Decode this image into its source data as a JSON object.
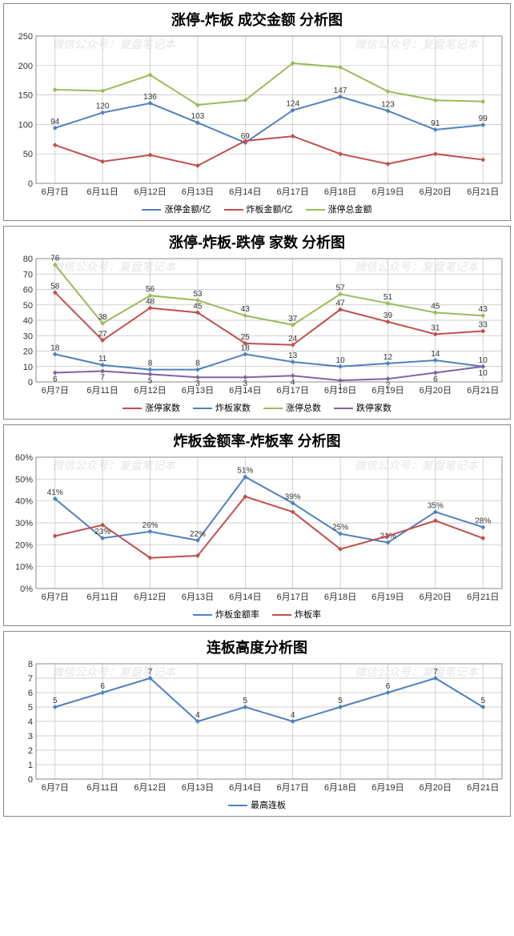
{
  "watermark_texts": [
    "微信公众号：复盘笔记本",
    "微信公众号：复盘笔记本"
  ],
  "watermark_color": "#e5e5e5",
  "x_categories": [
    "6月7日",
    "6月11日",
    "6月12日",
    "6月13日",
    "6月14日",
    "6月17日",
    "6月18日",
    "6月19日",
    "6月20日",
    "6月21日"
  ],
  "grid_color": "#bfbfbf",
  "axis_color": "#888888",
  "tick_font_size": 11,
  "title_font_size": 18,
  "chart1": {
    "title": "涨停-炸板 成交金额 分析图",
    "ylim": [
      0,
      250
    ],
    "ytick_step": 50,
    "series": [
      {
        "name": "涨停金额/亿",
        "color": "#4f81bd",
        "values": [
          94,
          120,
          136,
          103,
          69,
          124,
          147,
          123,
          91,
          99
        ],
        "label_all": true
      },
      {
        "name": "炸板金额/亿",
        "color": "#c0504d",
        "values": [
          65,
          37,
          48,
          30,
          72,
          80,
          50,
          33,
          50,
          40
        ],
        "label_all": false
      },
      {
        "name": "涨停总金额",
        "color": "#9bbb59",
        "values": [
          159,
          157,
          184,
          133,
          141,
          204,
          197,
          156,
          141,
          139
        ],
        "label_all": false
      }
    ]
  },
  "chart2": {
    "title": "涨停-炸板-跌停 家数 分析图",
    "ylim": [
      0,
      80
    ],
    "ytick_step": 10,
    "series": [
      {
        "name": "涨停家数",
        "color": "#c0504d",
        "values": [
          58,
          27,
          48,
          45,
          25,
          24,
          47,
          39,
          31,
          33
        ],
        "label_all": true
      },
      {
        "name": "炸板家数",
        "color": "#4f81bd",
        "values": [
          18,
          11,
          8,
          8,
          18,
          13,
          10,
          12,
          14,
          10
        ],
        "label_all": true,
        "label_above": true
      },
      {
        "name": "涨停总数",
        "color": "#9bbb59",
        "values": [
          76,
          38,
          56,
          53,
          43,
          37,
          57,
          51,
          45,
          43
        ],
        "label_all": true
      },
      {
        "name": "跌停家数",
        "color": "#8064a2",
        "values": [
          6,
          7,
          5,
          3,
          3,
          4,
          1,
          2,
          6,
          10
        ],
        "label_all": true,
        "label_below": true
      }
    ],
    "legend_order": [
      "涨停家数",
      "炸板家数",
      "涨停总数",
      "跌停家数"
    ]
  },
  "chart3": {
    "title": "炸板金额率-炸板率 分析图",
    "ylim": [
      0,
      60
    ],
    "ytick_step": 10,
    "percent": true,
    "series": [
      {
        "name": "炸板金额率",
        "color": "#4f81bd",
        "values": [
          41,
          23,
          26,
          22,
          51,
          39,
          25,
          21,
          35,
          28
        ],
        "label_all": true
      },
      {
        "name": "炸板率",
        "color": "#c0504d",
        "values": [
          24,
          29,
          14,
          15,
          42,
          35,
          18,
          24,
          31,
          23
        ],
        "label_all": false
      }
    ]
  },
  "chart4": {
    "title": "连板高度分析图",
    "ylim": [
      0,
      8
    ],
    "ytick_step": 1,
    "series": [
      {
        "name": "最高连板",
        "color": "#4f81bd",
        "values": [
          5,
          6,
          7,
          4,
          5,
          4,
          5,
          6,
          7,
          5
        ],
        "label_all": true
      }
    ]
  }
}
